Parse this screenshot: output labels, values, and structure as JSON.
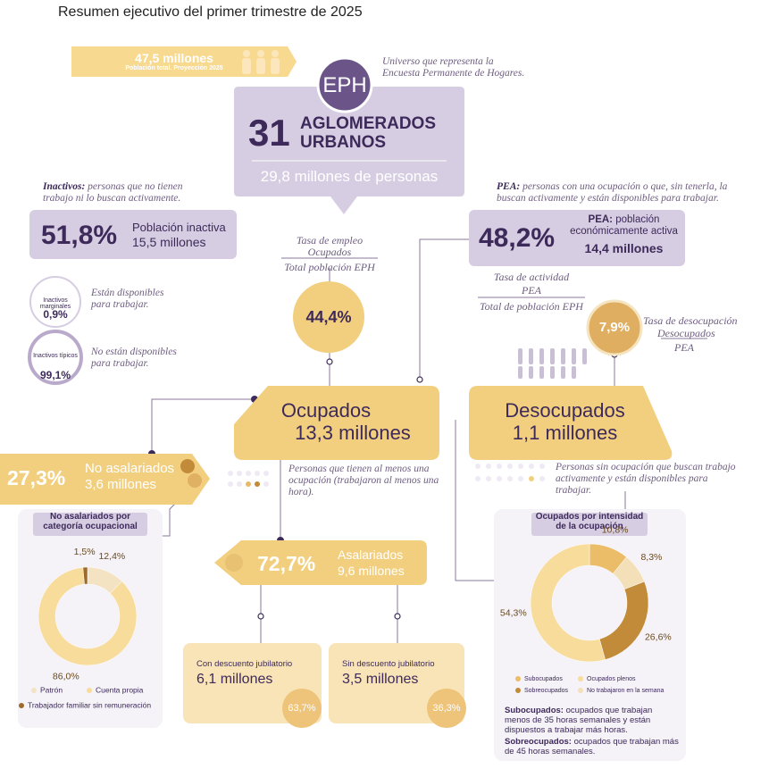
{
  "header": {
    "title": "Resumen ejecutivo del primer trimestre de 2025"
  },
  "population": {
    "value": "47,5 millones",
    "label": "Población total. Proyección 2025"
  },
  "eph": {
    "badge": "EPH",
    "note": "Universo que representa la Encuesta Permanente de Hogares."
  },
  "universe": {
    "number": "31",
    "label": "AGLOMERADOS URBANOS",
    "people": "29,8 millones de personas"
  },
  "inactivos": {
    "term": "Inactivos:",
    "definition": "personas que no tienen trabajo ni lo buscan activamente.",
    "percent": "51,8%",
    "label": "Población inactiva",
    "value": "15,5 millones",
    "marginales": {
      "label": "Inactivos marginales",
      "percent": "0,9%",
      "description": "Están disponibles para trabajar."
    },
    "tipicos": {
      "label": "Inactivos típicos",
      "percent": "99,1%",
      "description": "No están disponibles para trabajar."
    }
  },
  "pea": {
    "term": "PEA:",
    "definition": "personas con una ocupación o que, sin tenerla, la buscan activamente y están disponibles para trabajar.",
    "percent": "48,2%",
    "label_term": "PEA:",
    "label": "población económicamente activa",
    "value": "14,4 millones"
  },
  "tasa_empleo": {
    "title": "Tasa de empleo",
    "numerator": "Ocupados",
    "denominator": "Total población EPH",
    "value": "44,4%"
  },
  "tasa_actividad": {
    "title": "Tasa de actividad",
    "numerator": "PEA",
    "denominator": "Total de población EPH"
  },
  "tasa_desocupacion": {
    "title": "Tasa de desocupación",
    "numerator": "Desocupados",
    "denominator": "PEA",
    "value": "7,9%"
  },
  "ocupados": {
    "label": "Ocupados",
    "value": "13,3 millones",
    "description": "Personas que tienen al menos una ocupación (trabajaron al menos una hora)."
  },
  "desocupados": {
    "label": "Desocupados",
    "value": "1,1 millones",
    "description": "Personas sin ocupación que buscan trabajo activamente y están disponibles para trabajar."
  },
  "no_asalariados": {
    "percent": "27,3%",
    "label": "No asalariados",
    "value": "3,6 millones"
  },
  "asalariados": {
    "percent": "72,7%",
    "label": "Asalariados",
    "value": "9,6 millones",
    "con_descuento": {
      "label": "Con descuento jubilatorio",
      "value": "6,1 millones",
      "percent": "63,7%"
    },
    "sin_descuento": {
      "label": "Sin descuento jubilatorio",
      "value": "3,5 millones",
      "percent": "36,3%"
    }
  },
  "notes": [
    {
      "term": "Subocupados:",
      "text": "ocupados que trabajan menos de 35 horas semanales y están dispuestos a trabajar más horas."
    },
    {
      "term": "Sobreocupados:",
      "text": "ocupados que trabajan más de 45 horas semanales."
    }
  ],
  "chart_data": [
    {
      "type": "donut",
      "title": "No asalariados por categoría ocupacional",
      "categories": [
        "Patrón",
        "Cuenta propia",
        "Trabajador familiar sin remuneración"
      ],
      "values": [
        12.4,
        86.0,
        1.5
      ],
      "value_labels": [
        "12,4%",
        "86,0%",
        "1,5%"
      ],
      "colors": [
        "#f3e3c2",
        "#f7dc9c",
        "#9c6b2c"
      ]
    },
    {
      "type": "donut",
      "title": "Ocupados por intensidad de la ocupación",
      "categories": [
        "Subocupados",
        "No trabajaron en la semana",
        "Sobreocupados",
        "Ocupados plenos"
      ],
      "values": [
        10.8,
        8.3,
        26.6,
        54.3
      ],
      "value_labels": [
        "10,8%",
        "8,3%",
        "26,6%",
        "54,3%"
      ],
      "colors": [
        "#ebbd68",
        "#f4e0b8",
        "#c28b3a",
        "#f7dc9c"
      ]
    }
  ]
}
